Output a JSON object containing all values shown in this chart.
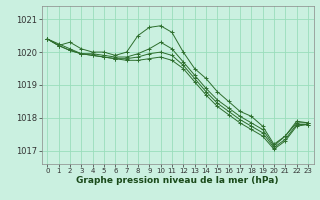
{
  "xlabel": "Graphe pression niveau de la mer (hPa)",
  "bg_color": "#caf0e0",
  "grid_color": "#99ddbb",
  "line_color": "#2d6e2d",
  "ylim": [
    1016.6,
    1021.4
  ],
  "xlim": [
    -0.5,
    23.5
  ],
  "yticks": [
    1017,
    1018,
    1019,
    1020,
    1021
  ],
  "xticks": [
    0,
    1,
    2,
    3,
    4,
    5,
    6,
    7,
    8,
    9,
    10,
    11,
    12,
    13,
    14,
    15,
    16,
    17,
    18,
    19,
    20,
    21,
    22,
    23
  ],
  "series": [
    [
      1020.4,
      1020.2,
      1020.3,
      1020.1,
      1020.0,
      1020.0,
      1019.9,
      1020.0,
      1020.5,
      1020.75,
      1020.8,
      1020.6,
      1020.0,
      1019.5,
      1019.2,
      1018.8,
      1018.5,
      1018.2,
      1018.05,
      1017.75,
      1017.2,
      1017.45,
      1017.9,
      1017.85
    ],
    [
      1020.4,
      1020.25,
      1020.1,
      1019.95,
      1019.95,
      1019.9,
      1019.85,
      1019.85,
      1019.95,
      1020.1,
      1020.3,
      1020.1,
      1019.7,
      1019.3,
      1018.9,
      1018.55,
      1018.3,
      1018.05,
      1017.85,
      1017.65,
      1017.15,
      1017.45,
      1017.85,
      1017.85
    ],
    [
      1020.4,
      1020.2,
      1020.05,
      1019.95,
      1019.9,
      1019.85,
      1019.8,
      1019.8,
      1019.85,
      1019.95,
      1020.0,
      1019.9,
      1019.6,
      1019.2,
      1018.8,
      1018.45,
      1018.2,
      1017.95,
      1017.75,
      1017.55,
      1017.1,
      1017.35,
      1017.8,
      1017.8
    ],
    [
      1020.4,
      1020.2,
      1020.05,
      1019.95,
      1019.9,
      1019.85,
      1019.8,
      1019.75,
      1019.75,
      1019.8,
      1019.85,
      1019.75,
      1019.5,
      1019.1,
      1018.7,
      1018.35,
      1018.1,
      1017.85,
      1017.65,
      1017.45,
      1017.05,
      1017.3,
      1017.75,
      1017.8
    ]
  ]
}
